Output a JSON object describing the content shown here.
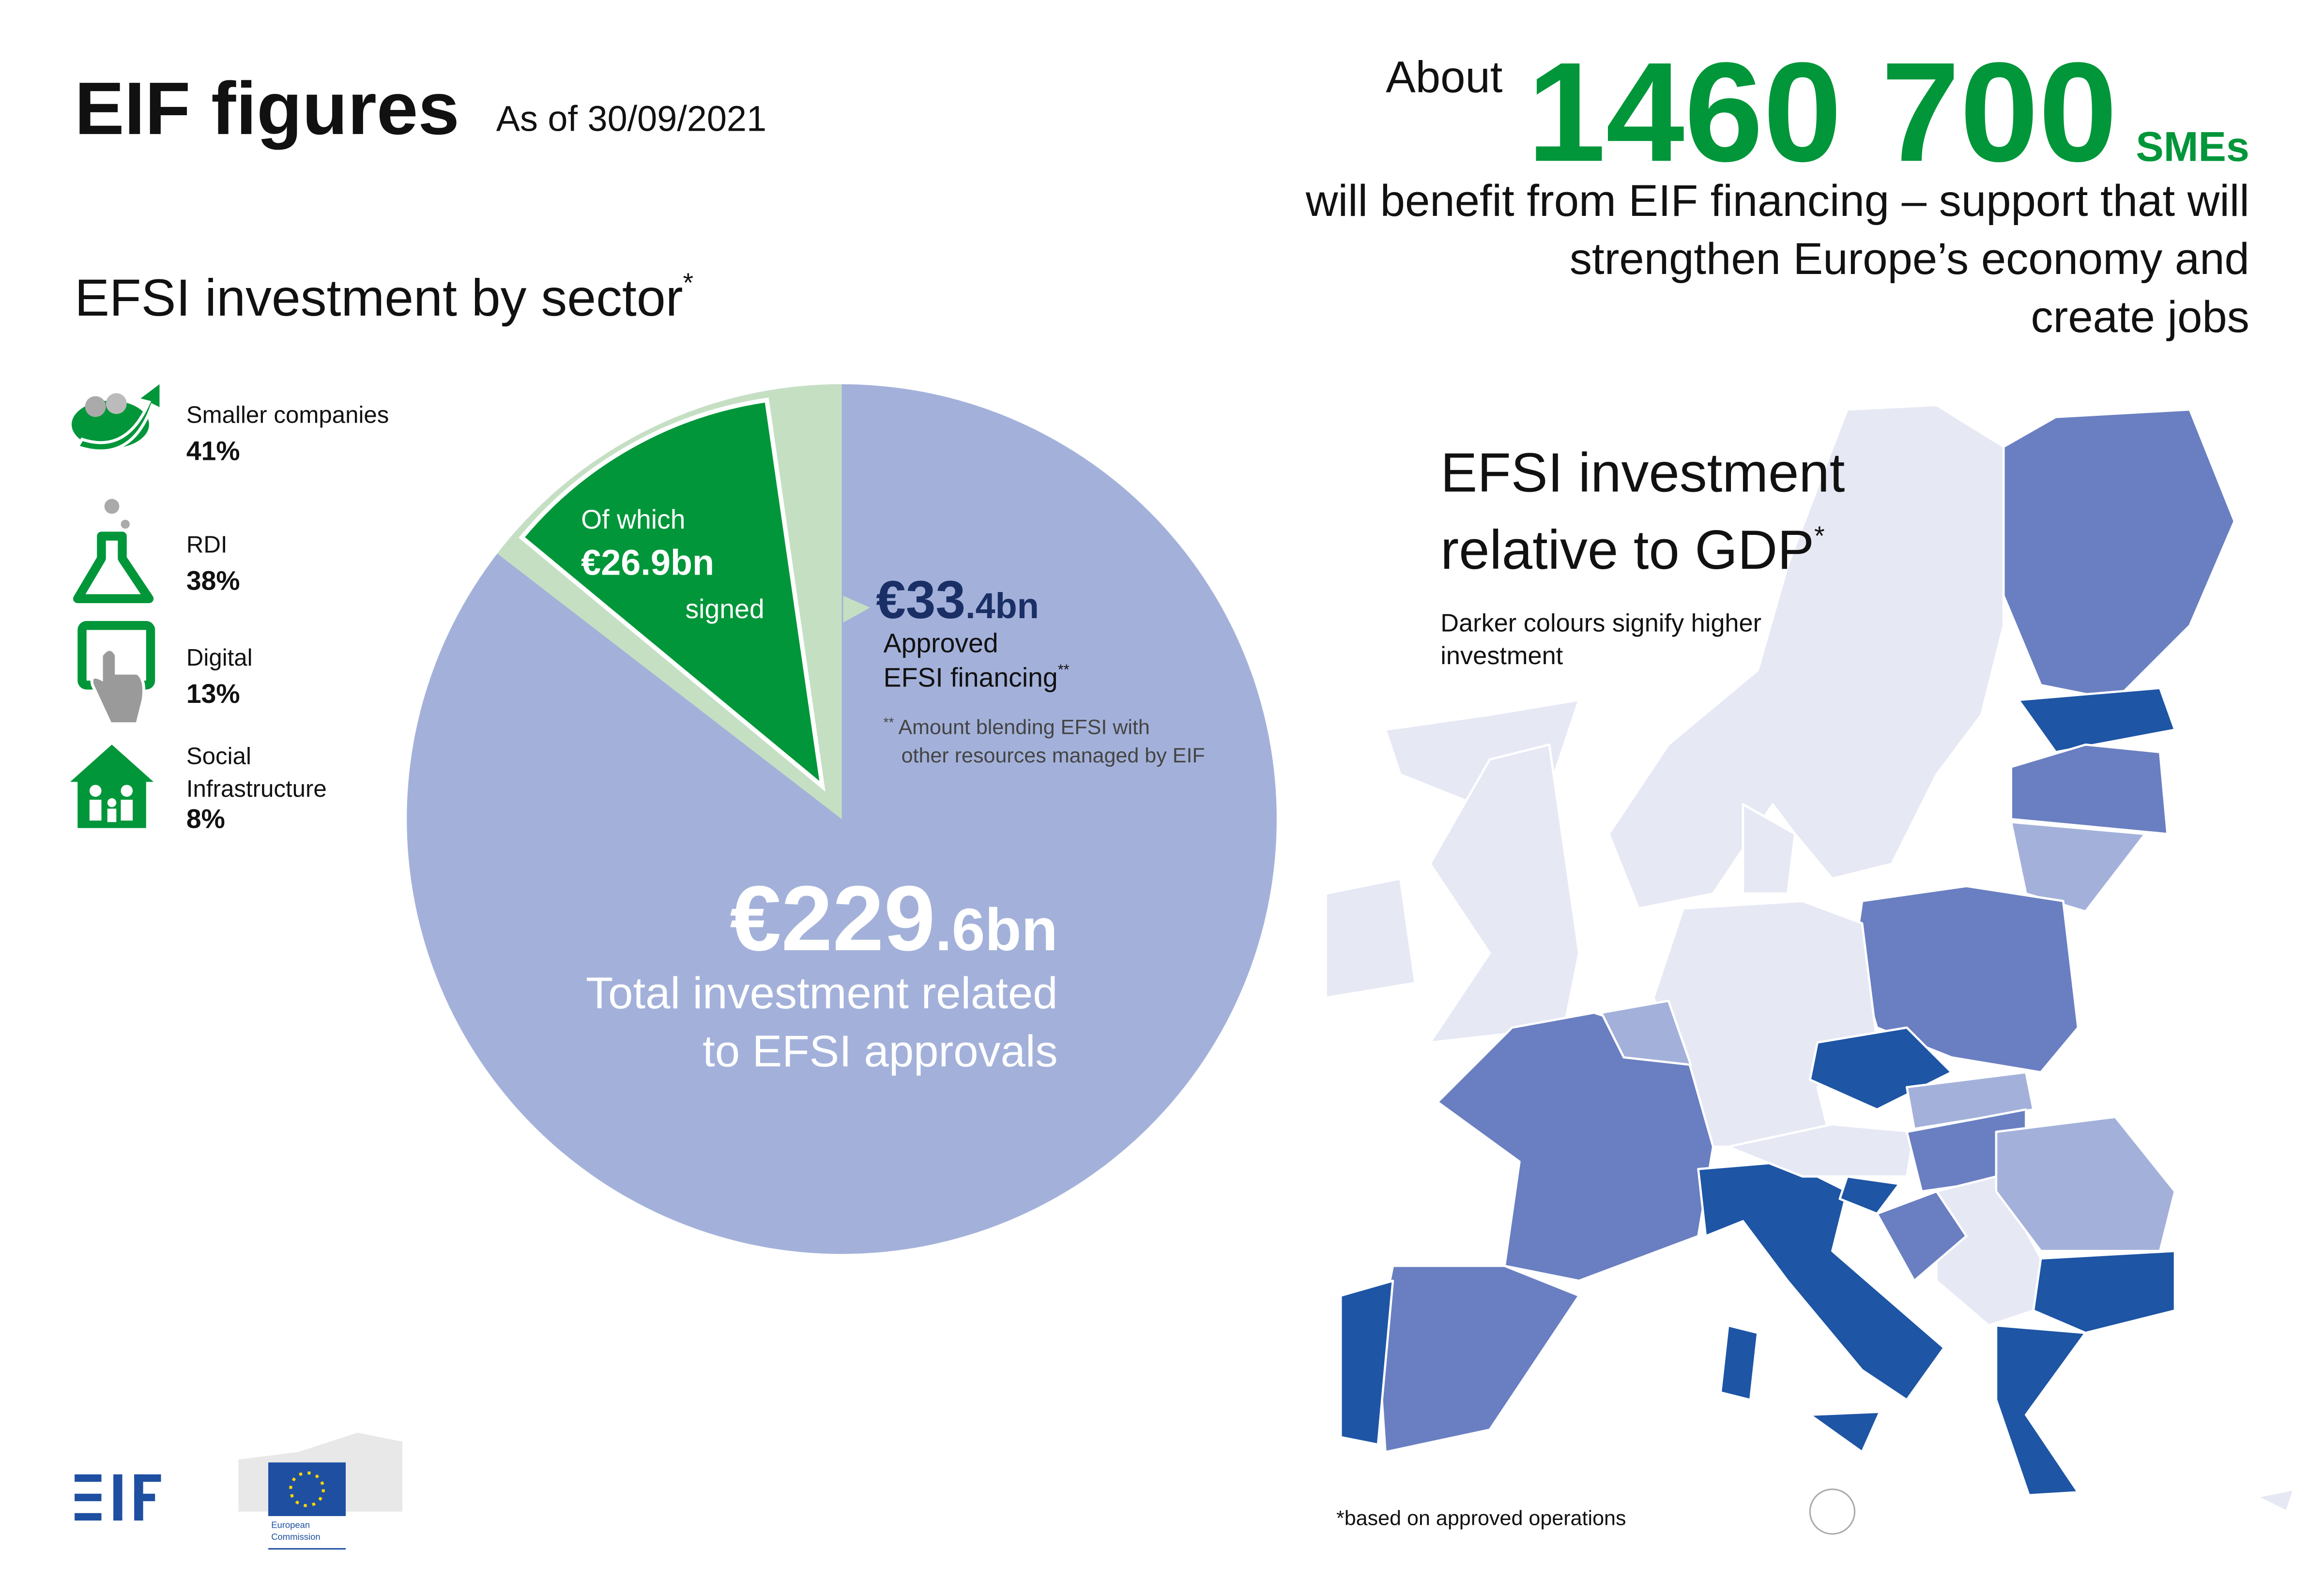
{
  "header": {
    "title": "EIF figures",
    "date": "As of 30/09/2021"
  },
  "headline": {
    "prefix": "About",
    "number": "1460 700",
    "unit": "SMEs",
    "lines": [
      "will benefit from EIF financing – support that will",
      "strengthen Europe’s economy and",
      "create jobs"
    ]
  },
  "sectors": {
    "title": "EFSI investment by sector",
    "mark": "*",
    "items": [
      {
        "label": [
          "Smaller companies"
        ],
        "value": "41%"
      },
      {
        "label": [
          "RDI"
        ],
        "value": "38%"
      },
      {
        "label": [
          "Digital"
        ],
        "value": "13%"
      },
      {
        "label": [
          "Social",
          "Infrastructure"
        ],
        "value": "8%"
      }
    ]
  },
  "pie": {
    "total": {
      "value": 229.6,
      "label_main": "€229",
      "label_decimal": ".6bn",
      "caption": [
        "Total investment related",
        "to EFSI approvals"
      ]
    },
    "approved": {
      "value": 33.4,
      "label_main": "€33",
      "label_decimal": ".4bn",
      "caption": [
        "Approved",
        "EFSI financing"
      ],
      "caption_mark": "**",
      "note_mark": "**",
      "note": [
        "Amount blending EFSI with",
        "other resources managed by EIF"
      ]
    },
    "signed": {
      "prefix": "Of which",
      "value": 26.9,
      "label_main": "€26",
      "label_decimal": ".9bn",
      "suffix": "signed"
    }
  },
  "map": {
    "title": [
      "EFSI investment",
      "relative to GDP"
    ],
    "mark": "*",
    "subtitle": [
      "Darker colours signify higher",
      "investment"
    ],
    "footnote": "*based on approved operations"
  },
  "logos": {
    "ec": [
      "European",
      "Commission"
    ]
  }
}
